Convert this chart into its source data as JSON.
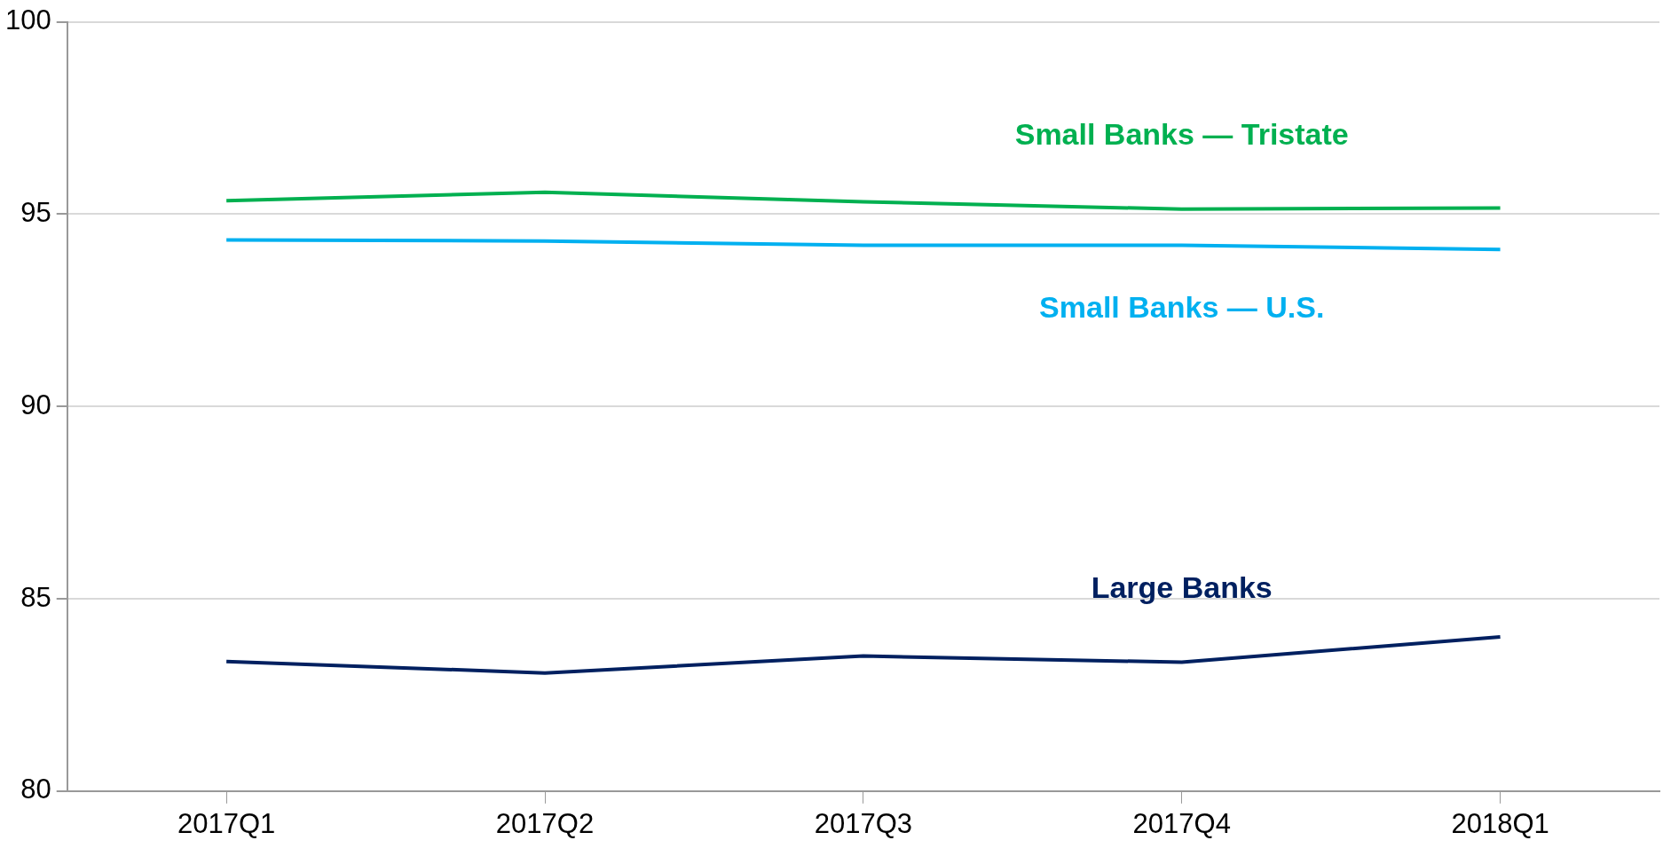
{
  "chart_data": {
    "type": "line",
    "categories": [
      "2017Q1",
      "2017Q2",
      "2017Q3",
      "2017Q4",
      "2018Q1"
    ],
    "series": [
      {
        "name": "Small Banks — Tristate",
        "color": "#00b050",
        "values": [
          95.35,
          95.57,
          95.32,
          95.13,
          95.16
        ]
      },
      {
        "name": "Small Banks — U.S.",
        "color": "#00b0f0",
        "values": [
          94.33,
          94.3,
          94.19,
          94.19,
          94.08
        ]
      },
      {
        "name": "Large Banks",
        "color": "#002060",
        "values": [
          83.37,
          83.07,
          83.51,
          83.35,
          84.01
        ]
      }
    ],
    "ylim": [
      80,
      100
    ],
    "yticks": [
      80,
      85,
      90,
      95,
      100
    ],
    "grid": "y",
    "legend": false,
    "marker": "none",
    "line_style": "solid"
  }
}
